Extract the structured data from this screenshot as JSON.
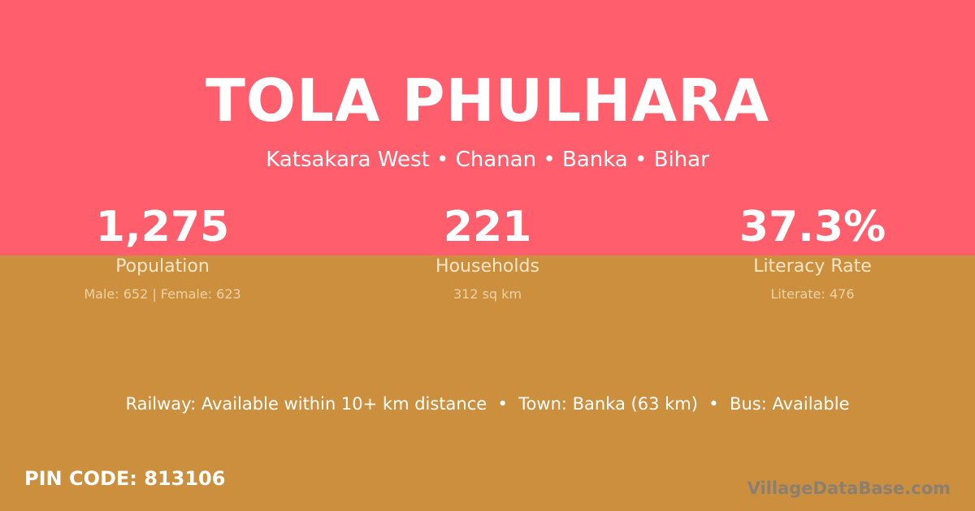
{
  "colors": {
    "top": "#ff5f6d",
    "bottom": "#cb8f3e"
  },
  "title": "TOLA PHULHARA",
  "location": "Katsakara West • Chanan • Banka • Bihar",
  "stats": [
    {
      "value": "1,275",
      "label": "Population",
      "detail": "Male: 652 | Female: 623"
    },
    {
      "value": "221",
      "label": "Households",
      "detail": "312 sq km"
    },
    {
      "value": "37.3%",
      "label": "Literacy Rate",
      "detail": "Literate: 476"
    }
  ],
  "info": "Railway: Available within 10+ km distance  •  Town: Banka (63 km)  •  Bus: Available",
  "pin": "PIN CODE: 813106",
  "brand": "VillageDataBase.com"
}
